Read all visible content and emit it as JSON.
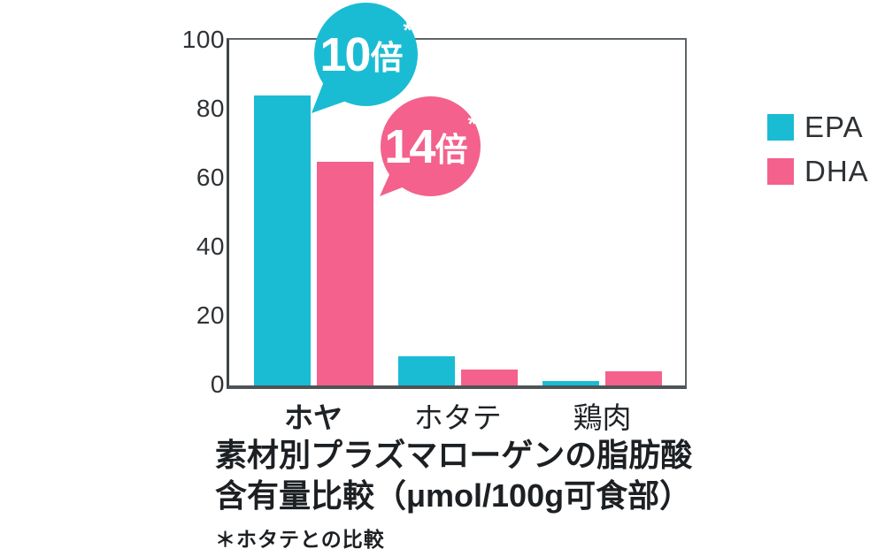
{
  "colors": {
    "epa": "#1abcd3",
    "dha": "#f3618c",
    "axis": "#3e4547",
    "text": "#1d2023"
  },
  "legend": {
    "epa_label": "EPA",
    "dha_label": "DHA"
  },
  "bubbles": [
    {
      "value": "10",
      "suffix": "倍",
      "note": "*",
      "series": "EPA"
    },
    {
      "value": "14",
      "suffix": "倍",
      "note": "*",
      "series": "DHA"
    }
  ],
  "caption": {
    "line1": "素材別プラズマローゲンの脂肪酸",
    "line2": "含有量比較（μmol/100g可食部）",
    "footnote": "＊ホタテとの比較"
  },
  "chart_data": {
    "type": "bar",
    "categories": [
      "ホヤ",
      "ホタテ",
      "鶏肉"
    ],
    "series": [
      {
        "name": "EPA",
        "color": "#1abcd3",
        "values": [
          84,
          8.4,
          1.2
        ]
      },
      {
        "name": "DHA",
        "color": "#f3618c",
        "values": [
          65,
          4.6,
          4.1
        ]
      }
    ],
    "ylim": [
      0,
      100
    ],
    "yticks": [
      0,
      20,
      40,
      60,
      80,
      100
    ],
    "xlabel": "",
    "ylabel": "",
    "grid": false,
    "legend_position": "upper-right",
    "emphasized_category": "ホヤ",
    "title": "素材別プラズマローゲンの脂肪酸含有量比較（μmol/100g可食部）",
    "footnote": "＊ホタテとの比較",
    "annotations": [
      {
        "text": "10倍*",
        "series": "EPA",
        "category": "ホヤ"
      },
      {
        "text": "14倍*",
        "series": "DHA",
        "category": "ホヤ"
      }
    ]
  }
}
